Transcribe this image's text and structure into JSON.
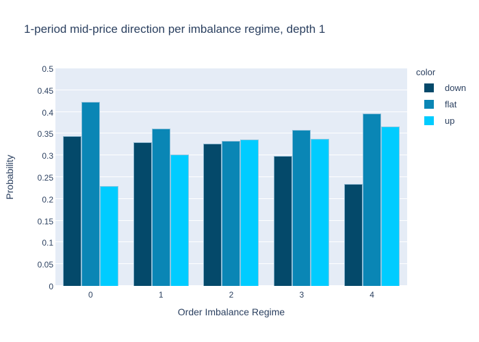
{
  "title": "1-period mid-price direction per imbalance regime, depth 1",
  "colors": {
    "text": "#2a3f5f",
    "plot_background": "#e5ecf6",
    "gridline": "#ffffff",
    "down": "#04496a",
    "flat": "#0a86b5",
    "up": "#00ccff"
  },
  "legend": {
    "title": "color",
    "items": [
      {
        "label": "down",
        "color": "#04496a"
      },
      {
        "label": "flat",
        "color": "#0a86b5"
      },
      {
        "label": "up",
        "color": "#00ccff"
      }
    ]
  },
  "xaxis": {
    "title": "Order Imbalance Regime"
  },
  "yaxis": {
    "title": "Probability"
  },
  "chart_data": {
    "type": "bar",
    "title": "1-period mid-price direction per imbalance regime, depth 1",
    "xlabel": "Order Imbalance Regime",
    "ylabel": "Probability",
    "categories": [
      "0",
      "1",
      "2",
      "3",
      "4"
    ],
    "series": [
      {
        "name": "down",
        "color": "#04496a",
        "values": [
          0.344,
          0.33,
          0.327,
          0.298,
          0.234
        ]
      },
      {
        "name": "flat",
        "color": "#0a86b5",
        "values": [
          0.423,
          0.362,
          0.334,
          0.359,
          0.396
        ]
      },
      {
        "name": "up",
        "color": "#00ccff",
        "values": [
          0.229,
          0.302,
          0.336,
          0.338,
          0.366
        ]
      }
    ],
    "ylim": [
      0,
      0.5
    ],
    "yticks": [
      0,
      0.05,
      0.1,
      0.15,
      0.2,
      0.25,
      0.3,
      0.35,
      0.4,
      0.45,
      0.5
    ],
    "ytick_labels": [
      "0",
      "0.05",
      "0.1",
      "0.15",
      "0.2",
      "0.25",
      "0.3",
      "0.35",
      "0.4",
      "0.45",
      "0.5"
    ],
    "grid": true,
    "legend_position": "right",
    "bar_mode": "group"
  }
}
